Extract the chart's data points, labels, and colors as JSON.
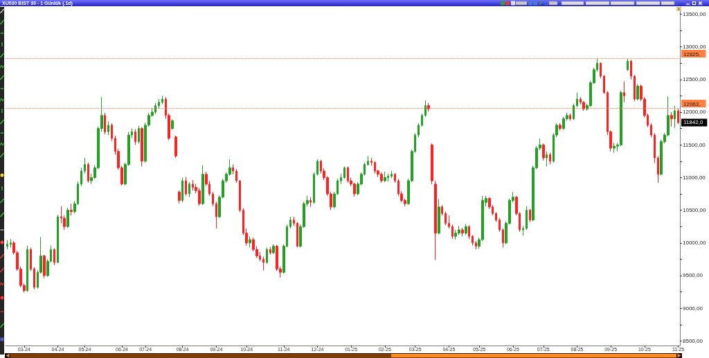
{
  "chart_data": {
    "type": "candlestick",
    "title": "XU030 BIST 30 - 1 Günlük (.1d)",
    "categories": [
      null,
      null,
      null,
      null,
      null,
      "03-24",
      null,
      null,
      null,
      null,
      null,
      null,
      null,
      null,
      null,
      "04-24",
      null,
      null,
      null,
      null,
      null,
      null,
      null,
      "05-24",
      null,
      null,
      null,
      null,
      null,
      null,
      null,
      null,
      null,
      null,
      "06-24",
      null,
      null,
      null,
      null,
      null,
      null,
      "07-24",
      null,
      null,
      null,
      null,
      null,
      null,
      null,
      null,
      null,
      null,
      "08-24",
      null,
      null,
      null,
      null,
      null,
      null,
      null,
      null,
      null,
      "09-24",
      null,
      null,
      null,
      null,
      null,
      null,
      null,
      null,
      "10-24",
      null,
      null,
      null,
      null,
      null,
      null,
      null,
      null,
      null,
      null,
      "11-24",
      null,
      null,
      null,
      null,
      null,
      null,
      null,
      null,
      null,
      "12-24",
      null,
      null,
      null,
      null,
      null,
      null,
      null,
      null,
      null,
      "01-25",
      null,
      null,
      null,
      null,
      null,
      null,
      null,
      null,
      null,
      "02-25",
      null,
      null,
      null,
      null,
      null,
      null,
      null,
      null,
      "03-25",
      null,
      null,
      null,
      null,
      null,
      null,
      null,
      null,
      null,
      "04-25",
      null,
      null,
      null,
      null,
      null,
      null,
      null,
      null,
      "05-25",
      null,
      null,
      null,
      null,
      null,
      null,
      null,
      null,
      null,
      "06-25",
      null,
      null,
      null,
      null,
      null,
      null,
      null,
      null,
      "07-25",
      null,
      null,
      null,
      null,
      null,
      null,
      null,
      null,
      null,
      "08-25",
      null,
      null,
      null,
      null,
      null,
      null,
      null,
      null,
      null,
      "09-25",
      null,
      null,
      null,
      null,
      null,
      null,
      null,
      null,
      null,
      "10-25",
      null,
      null,
      null,
      null,
      null,
      null,
      null,
      null,
      null,
      "11-25"
    ],
    "ohlc": [
      [
        9950,
        10040,
        9900,
        9980
      ],
      [
        9980,
        10060,
        9930,
        10000
      ],
      [
        10000,
        10030,
        9820,
        9850
      ],
      [
        9850,
        9880,
        9570,
        9600
      ],
      [
        9600,
        9640,
        9320,
        9350
      ],
      [
        9350,
        9380,
        9240,
        9270
      ],
      [
        9270,
        9960,
        9250,
        9900
      ],
      [
        9900,
        9930,
        9570,
        9600
      ],
      [
        9600,
        9630,
        9290,
        9320
      ],
      [
        9320,
        9580,
        9300,
        9550
      ],
      [
        9550,
        10090,
        9530,
        9800
      ],
      [
        9800,
        9820,
        9460,
        9500
      ],
      [
        9500,
        9750,
        9480,
        9720
      ],
      [
        9720,
        9960,
        9700,
        9900
      ],
      [
        9900,
        9920,
        9660,
        9700
      ],
      [
        9700,
        10430,
        9690,
        10400
      ],
      [
        10400,
        10560,
        10300,
        10380
      ],
      [
        10380,
        10420,
        10200,
        10250
      ],
      [
        10250,
        10540,
        10230,
        10500
      ],
      [
        10500,
        10600,
        10420,
        10480
      ],
      [
        10480,
        10640,
        10450,
        10600
      ],
      [
        10600,
        10940,
        10580,
        10900
      ],
      [
        10900,
        11150,
        10870,
        11100
      ],
      [
        11100,
        11300,
        11060,
        11200
      ],
      [
        11200,
        11230,
        10920,
        10950
      ],
      [
        10950,
        11060,
        10900,
        11000
      ],
      [
        11000,
        11190,
        10980,
        11150
      ],
      [
        11150,
        11780,
        11130,
        11750
      ],
      [
        11750,
        12230,
        11700,
        11950
      ],
      [
        11950,
        11990,
        11660,
        11700
      ],
      [
        11700,
        11860,
        11650,
        11800
      ],
      [
        11800,
        11830,
        11560,
        11600
      ],
      [
        11600,
        11640,
        11350,
        11400
      ],
      [
        11400,
        11440,
        11120,
        11150
      ],
      [
        11150,
        11180,
        10880,
        10900
      ],
      [
        10900,
        11230,
        10880,
        11200
      ],
      [
        11200,
        11700,
        11180,
        11650
      ],
      [
        11650,
        11750,
        11600,
        11700
      ],
      [
        11700,
        11740,
        11500,
        11550
      ],
      [
        11550,
        11790,
        11520,
        11750
      ],
      [
        11750,
        11770,
        11170,
        11250
      ],
      [
        11250,
        11840,
        11230,
        11800
      ],
      [
        11800,
        11990,
        11780,
        11950
      ],
      [
        11950,
        12060,
        11930,
        12000
      ],
      [
        12000,
        12140,
        11970,
        12100
      ],
      [
        12100,
        12200,
        12060,
        12150
      ],
      [
        12150,
        12250,
        12120,
        12200
      ],
      [
        12200,
        12230,
        11900,
        11950
      ],
      [
        11950,
        11980,
        11570,
        11600
      ],
      [
        11750,
        11890,
        11730,
        11870
      ],
      [
        11620,
        11640,
        11300,
        11330
      ],
      [
        10780,
        10800,
        10600,
        10650
      ],
      [
        10650,
        11000,
        10620,
        10950
      ],
      [
        10950,
        11010,
        10720,
        10750
      ],
      [
        10750,
        10930,
        10700,
        10900
      ],
      [
        10900,
        10960,
        10800,
        10850
      ],
      [
        10850,
        10900,
        10760,
        10800
      ],
      [
        10800,
        10840,
        10570,
        10600
      ],
      [
        10600,
        11190,
        10580,
        11050
      ],
      [
        11050,
        11090,
        10870,
        10900
      ],
      [
        10900,
        10950,
        10720,
        10750
      ],
      [
        10750,
        10780,
        10560,
        10600
      ],
      [
        10600,
        10630,
        10220,
        10400
      ],
      [
        10400,
        10730,
        10380,
        10700
      ],
      [
        10700,
        10980,
        10680,
        10950
      ],
      [
        10950,
        11080,
        10920,
        11050
      ],
      [
        11050,
        11280,
        11030,
        11150
      ],
      [
        11150,
        11200,
        11050,
        11100
      ],
      [
        11100,
        11130,
        10920,
        10950
      ],
      [
        10950,
        10960,
        10470,
        10500
      ],
      [
        10500,
        10530,
        10120,
        10150
      ],
      [
        10150,
        10220,
        9960,
        10000
      ],
      [
        10000,
        10100,
        9930,
        10050
      ],
      [
        10050,
        10080,
        9870,
        9900
      ],
      [
        9900,
        9950,
        9770,
        9800
      ],
      [
        9800,
        9860,
        9720,
        9750
      ],
      [
        9750,
        9790,
        9580,
        9700
      ],
      [
        9700,
        9930,
        9680,
        9900
      ],
      [
        9900,
        9940,
        9820,
        9850
      ],
      [
        9850,
        9980,
        9830,
        9950
      ],
      [
        9950,
        9970,
        9570,
        9600
      ],
      [
        9600,
        9640,
        9470,
        9550
      ],
      [
        9550,
        9980,
        9530,
        9950
      ],
      [
        9950,
        10280,
        9930,
        10250
      ],
      [
        10250,
        10400,
        10220,
        10350
      ],
      [
        10350,
        10400,
        10260,
        10300
      ],
      [
        10300,
        10320,
        9930,
        9950
      ],
      [
        9950,
        10280,
        9930,
        10250
      ],
      [
        10250,
        10630,
        10230,
        10600
      ],
      [
        10600,
        10720,
        10560,
        10650
      ],
      [
        10650,
        10700,
        10550,
        10620
      ],
      [
        10620,
        11080,
        10600,
        11050
      ],
      [
        11050,
        11280,
        11030,
        11250
      ],
      [
        11250,
        11270,
        11060,
        11100
      ],
      [
        11100,
        11140,
        10960,
        11000
      ],
      [
        11000,
        11020,
        10720,
        10750
      ],
      [
        10750,
        10780,
        10500,
        10550
      ],
      [
        10550,
        10780,
        10530,
        10750
      ],
      [
        10750,
        10980,
        10730,
        10950
      ],
      [
        10950,
        11060,
        10900,
        11000
      ],
      [
        11000,
        11170,
        10980,
        11150
      ],
      [
        11150,
        11170,
        10920,
        10950
      ],
      [
        10950,
        11000,
        10870,
        10900
      ],
      [
        10900,
        10920,
        10710,
        10750
      ],
      [
        10750,
        10930,
        10730,
        10900
      ],
      [
        10900,
        11080,
        10880,
        11050
      ],
      [
        11050,
        11230,
        11030,
        11200
      ],
      [
        11200,
        11330,
        11180,
        11250
      ],
      [
        11250,
        11300,
        11180,
        11230
      ],
      [
        11230,
        11250,
        11060,
        11100
      ],
      [
        11100,
        11120,
        11010,
        11050
      ],
      [
        11050,
        11080,
        10920,
        10950
      ],
      [
        10950,
        11090,
        10930,
        11000
      ],
      [
        11000,
        11060,
        10940,
        11020
      ],
      [
        11020,
        11100,
        10990,
        11050
      ],
      [
        11050,
        11070,
        10920,
        10950
      ],
      [
        10950,
        10980,
        10720,
        10750
      ],
      [
        10750,
        10790,
        10620,
        10650
      ],
      [
        10650,
        10680,
        10560,
        10600
      ],
      [
        10600,
        10980,
        10580,
        10950
      ],
      [
        10950,
        11430,
        10930,
        11400
      ],
      [
        11400,
        11680,
        11380,
        11650
      ],
      [
        11650,
        11830,
        11620,
        11800
      ],
      [
        11800,
        11980,
        11780,
        11950
      ],
      [
        11950,
        12180,
        11930,
        12100
      ],
      [
        12100,
        12140,
        12010,
        12050
      ],
      [
        11500,
        11520,
        10900,
        10950
      ],
      [
        10900,
        10950,
        9740,
        10150
      ],
      [
        10150,
        10670,
        10130,
        10550
      ],
      [
        10550,
        10580,
        10420,
        10450
      ],
      [
        10450,
        10480,
        10270,
        10300
      ],
      [
        10300,
        10420,
        10220,
        10250
      ],
      [
        10250,
        10280,
        10060,
        10100
      ],
      [
        10100,
        10200,
        10050,
        10150
      ],
      [
        10150,
        10260,
        10120,
        10200
      ],
      [
        10200,
        10230,
        10100,
        10150
      ],
      [
        10150,
        10290,
        10120,
        10250
      ],
      [
        10250,
        10270,
        10060,
        10100
      ],
      [
        10100,
        10120,
        9960,
        10000
      ],
      [
        10000,
        10030,
        9900,
        9950
      ],
      [
        9950,
        10080,
        9910,
        10050
      ],
      [
        10050,
        10720,
        10030,
        10650
      ],
      [
        10620,
        10720,
        10560,
        10680
      ],
      [
        10680,
        10700,
        10520,
        10550
      ],
      [
        10550,
        10580,
        10420,
        10450
      ],
      [
        10450,
        10470,
        10320,
        10350
      ],
      [
        10350,
        10380,
        10170,
        10200
      ],
      [
        10200,
        10220,
        9930,
        10000
      ],
      [
        10000,
        10330,
        9980,
        10300
      ],
      [
        10300,
        10680,
        10280,
        10650
      ],
      [
        10650,
        10780,
        10620,
        10700
      ],
      [
        10700,
        10720,
        10420,
        10450
      ],
      [
        10450,
        10470,
        10170,
        10200
      ],
      [
        10200,
        10260,
        10110,
        10220
      ],
      [
        10220,
        10560,
        10200,
        10500
      ],
      [
        10500,
        10520,
        10320,
        10350
      ],
      [
        10350,
        11180,
        10330,
        11150
      ],
      [
        11150,
        11480,
        11130,
        11450
      ],
      [
        11450,
        11600,
        11420,
        11500
      ],
      [
        11500,
        11520,
        11260,
        11300
      ],
      [
        11300,
        11400,
        11170,
        11350
      ],
      [
        11350,
        11380,
        11200,
        11250
      ],
      [
        11250,
        11680,
        11230,
        11650
      ],
      [
        11650,
        11830,
        11620,
        11800
      ],
      [
        11800,
        11830,
        11720,
        11750
      ],
      [
        11750,
        11930,
        11730,
        11900
      ],
      [
        11900,
        11990,
        11870,
        11950
      ],
      [
        11950,
        11980,
        11870,
        11900
      ],
      [
        11900,
        12130,
        11880,
        12100
      ],
      [
        12100,
        12300,
        12080,
        12200
      ],
      [
        12200,
        12230,
        12120,
        12150
      ],
      [
        12150,
        12170,
        12020,
        12050
      ],
      [
        12050,
        12130,
        12020,
        12100
      ],
      [
        12100,
        12480,
        12080,
        12450
      ],
      [
        12450,
        12680,
        12430,
        12650
      ],
      [
        12650,
        12830,
        12620,
        12750
      ],
      [
        12750,
        12760,
        12520,
        12550
      ],
      [
        12550,
        12570,
        12280,
        12300
      ],
      [
        12300,
        12320,
        11650,
        11700
      ],
      [
        11700,
        11720,
        11400,
        11450
      ],
      [
        11450,
        11530,
        11380,
        11480
      ],
      [
        11480,
        11530,
        11400,
        11500
      ],
      [
        11500,
        12330,
        11480,
        12300
      ],
      [
        12300,
        12470,
        12150,
        12250
      ],
      [
        12650,
        12820,
        12630,
        12780
      ],
      [
        12780,
        12800,
        12500,
        12550
      ],
      [
        12550,
        12570,
        12170,
        12200
      ],
      [
        12200,
        12430,
        12180,
        12400
      ],
      [
        12400,
        12420,
        12170,
        12200
      ],
      [
        12200,
        12230,
        11920,
        11950
      ],
      [
        11950,
        11980,
        11770,
        11800
      ],
      [
        11800,
        11830,
        11620,
        11650
      ],
      [
        11650,
        11680,
        11220,
        11300
      ],
      [
        11300,
        11330,
        10920,
        11050
      ],
      [
        11050,
        11580,
        11030,
        11550
      ],
      [
        11550,
        11680,
        11520,
        11650
      ],
      [
        11650,
        12240,
        11630,
        11950
      ],
      [
        11950,
        12000,
        11780,
        11900
      ],
      [
        11900,
        12100,
        11760,
        12020
      ],
      [
        12020,
        12050,
        11820,
        11842
      ]
    ],
    "colors": [
      "#22a022",
      "#22a022",
      "#ff2020",
      "#ff2020",
      "#ff2020",
      "#ff2020",
      "#22a022",
      "#ff2020",
      "#ff2020",
      "#22a022",
      "#22a022",
      "#ff2020",
      "#22a022",
      "#22a022",
      "#ff2020",
      "#22a022",
      "#ff2020",
      "#ff2020",
      "#22a022",
      "#ff2020",
      "#22a022",
      "#22a022",
      "#22a022",
      "#22a022",
      "#ff2020",
      "#22a022",
      "#22a022",
      "#22a022",
      "#22a022",
      "#ff2020",
      "#22a022",
      "#ff2020",
      "#ff2020",
      "#ff2020",
      "#ff2020",
      "#22a022",
      "#22a022",
      "#22a022",
      "#ff2020",
      "#22a022",
      "#ff2020",
      "#22a022",
      "#22a022",
      "#22a022",
      "#22a022",
      "#22a022",
      "#22a022",
      "#ff2020",
      "#ff2020",
      "#22a022",
      "#ff2020",
      "#ff2020",
      "#22a022",
      "#ff2020",
      "#22a022",
      "#ff2020",
      "#ff2020",
      "#ff2020",
      "#22a022",
      "#ff2020",
      "#ff2020",
      "#ff2020",
      "#ff2020",
      "#22a022",
      "#22a022",
      "#22a022",
      "#22a022",
      "#ff2020",
      "#ff2020",
      "#ff2020",
      "#ff2020",
      "#ff2020",
      "#22a022",
      "#ff2020",
      "#ff2020",
      "#ff2020",
      "#ff2020",
      "#22a022",
      "#ff2020",
      "#22a022",
      "#ff2020",
      "#ff2020",
      "#22a022",
      "#22a022",
      "#22a022",
      "#ff2020",
      "#ff2020",
      "#22a022",
      "#22a022",
      "#22a022",
      "#ff2020",
      "#22a022",
      "#22a022",
      "#ff2020",
      "#ff2020",
      "#ff2020",
      "#ff2020",
      "#22a022",
      "#22a022",
      "#22a022",
      "#22a022",
      "#ff2020",
      "#ff2020",
      "#ff2020",
      "#22a022",
      "#22a022",
      "#22a022",
      "#22a022",
      "#ff2020",
      "#ff2020",
      "#ff2020",
      "#ff2020",
      "#22a022",
      "#22a022",
      "#22a022",
      "#ff2020",
      "#ff2020",
      "#ff2020",
      "#ff2020",
      "#22a022",
      "#22a022",
      "#22a022",
      "#22a022",
      "#22a022",
      "#22a022",
      "#ff2020",
      "#ff2020",
      "#ff2020",
      "#22a022",
      "#ff2020",
      "#ff2020",
      "#ff2020",
      "#ff2020",
      "#22a022",
      "#22a022",
      "#ff2020",
      "#22a022",
      "#ff2020",
      "#ff2020",
      "#ff2020",
      "#22a022",
      "#22a022",
      "#22a022",
      "#ff2020",
      "#ff2020",
      "#ff2020",
      "#ff2020",
      "#ff2020",
      "#22a022",
      "#22a022",
      "#22a022",
      "#ff2020",
      "#ff2020",
      "#22a022",
      "#22a022",
      "#ff2020",
      "#22a022",
      "#22a022",
      "#22a022",
      "#ff2020",
      "#22a022",
      "#ff2020",
      "#22a022",
      "#22a022",
      "#ff2020",
      "#22a022",
      "#22a022",
      "#ff2020",
      "#22a022",
      "#22a022",
      "#ff2020",
      "#ff2020",
      "#22a022",
      "#22a022",
      "#22a022",
      "#22a022",
      "#ff2020",
      "#ff2020",
      "#ff2020",
      "#ff2020",
      "#22a022",
      "#22a022",
      "#22a022",
      "#ff2020",
      "#22a022",
      "#ff2020",
      "#ff2020",
      "#22a022",
      "#ff2020",
      "#ff2020",
      "#ff2020",
      "#ff2020",
      "#ff2020",
      "#ff2020",
      "#22a022",
      "#22a022",
      "#22a022",
      "#ff2020",
      "#22a022",
      "#ff2020"
    ],
    "ylim": [
      8430,
      13610
    ],
    "yticks": [
      {
        "value": 8500,
        "label": "8500,00"
      },
      {
        "value": 8750,
        "label": null
      },
      {
        "value": 9000,
        "label": "9000,00"
      },
      {
        "value": 9250,
        "label": null
      },
      {
        "value": 9500,
        "label": "9500,00"
      },
      {
        "value": 9750,
        "label": null
      },
      {
        "value": 10000,
        "label": "10000,00"
      },
      {
        "value": 10250,
        "label": null
      },
      {
        "value": 10500,
        "label": "10500,00"
      },
      {
        "value": 10750,
        "label": null
      },
      {
        "value": 11000,
        "label": "11000,00"
      },
      {
        "value": 11250,
        "label": null
      },
      {
        "value": 11500,
        "label": "11500,00"
      },
      {
        "value": 11750,
        "label": null
      },
      {
        "value": 12000,
        "label": "12000,00"
      },
      {
        "value": 12250,
        "label": null
      },
      {
        "value": 12500,
        "label": "12500,00"
      },
      {
        "value": 12750,
        "label": null
      },
      {
        "value": 13000,
        "label": "13000,00"
      },
      {
        "value": 13250,
        "label": null
      },
      {
        "value": 13500,
        "label": "13500,00"
      }
    ],
    "ref_lines": [
      {
        "axis": "y",
        "value": 12825,
        "label": "12825,",
        "color": "#ff8040",
        "line_style": "dotted"
      },
      {
        "axis": "y",
        "value": 12063,
        "label": "12063,",
        "color": "#ff8040",
        "line_style": "dotted"
      }
    ],
    "annotations": [
      "11842,0"
    ]
  }
}
